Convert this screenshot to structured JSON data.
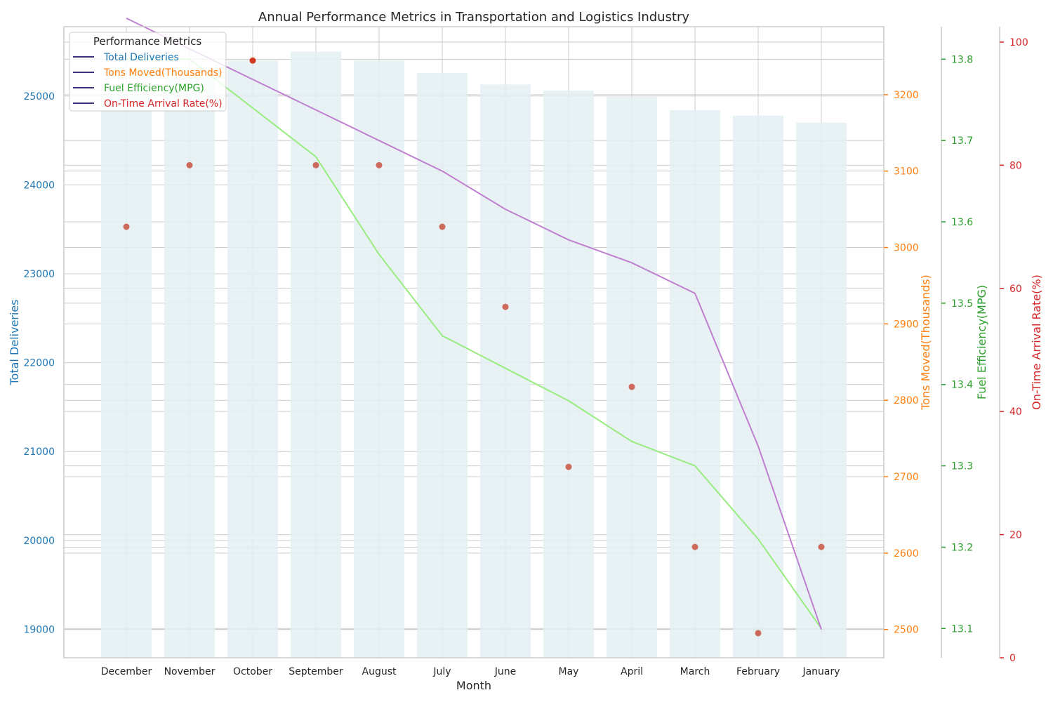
{
  "chart_data": {
    "type": "bar",
    "title": "Annual Performance Metrics in Transportation and Logistics Industry",
    "xlabel": "Month",
    "categories": [
      "December",
      "November",
      "October",
      "September",
      "August",
      "July",
      "June",
      "May",
      "April",
      "March",
      "February",
      "January"
    ],
    "series": [
      {
        "name": "Total Deliveries",
        "kind": "bar",
        "axis": "Total Deliveries",
        "values": [
          25000,
          25200,
          25400,
          25500,
          25400,
          25260,
          25130,
          25060,
          24990,
          24840,
          24780,
          24700
        ]
      },
      {
        "name": "Tons Moved(Thousands)",
        "kind": "line",
        "axis": "Tons Moved(Thousands)",
        "values": [
          3300,
          3260,
          3220,
          3180,
          3140,
          3100,
          3050,
          3010,
          2980,
          2940,
          2740,
          2500
        ]
      },
      {
        "name": "Fuel Efficiency(MPG)",
        "kind": "line",
        "axis": "Fuel Efficiency(MPG)",
        "values": [
          13.8,
          13.8,
          13.74,
          13.68,
          13.56,
          13.46,
          13.42,
          13.38,
          13.33,
          13.3,
          13.21,
          13.1
        ]
      },
      {
        "name": "On-Time Arrival Rate(%)",
        "kind": "scatter",
        "axis": "On-Time Arrival Rate(%)",
        "values": [
          70,
          80,
          97,
          80,
          80,
          70,
          57,
          31,
          44,
          18,
          4,
          18
        ]
      }
    ],
    "axes": [
      {
        "label": "Total Deliveries",
        "side": "left",
        "range": [
          18680,
          25780
        ],
        "ticks": [
          "19000",
          "20000",
          "21000",
          "22000",
          "23000",
          "24000",
          "25000"
        ],
        "color": "#1f77b4"
      },
      {
        "label": "Tons Moved(Thousands)",
        "side": "right",
        "range": [
          2463,
          2380
        ],
        "ticks": [
          "2500",
          "2600",
          "2700",
          "2800",
          "2900",
          "3000",
          "3100",
          "3200"
        ],
        "color": "#ff7f0e"
      },
      {
        "label": "Fuel Efficiency(MPG)",
        "side": "right",
        "range": [
          13.064,
          13.84
        ],
        "ticks": [
          "13.1",
          "13.2",
          "13.3",
          "13.4",
          "13.5",
          "13.6",
          "13.7",
          "13.8"
        ],
        "color": "#2ca02c"
      },
      {
        "label": "On-Time Arrival Rate(%)",
        "side": "right",
        "range": [
          0,
          100
        ],
        "ticks": [
          "0",
          "20",
          "40",
          "60",
          "80",
          "100"
        ],
        "color": "#d62728"
      }
    ],
    "legend": {
      "title": "Performance Metrics",
      "placement": "top-left"
    },
    "grid": true,
    "colors": {
      "bar": "#e4f0f2",
      "tons_line": "#bf7fd0",
      "fuel_line": "#98ec80",
      "scatter": "#cd6a5c",
      "scatter_highlight": "#d13a22",
      "legend_line": "#3b3578"
    }
  }
}
